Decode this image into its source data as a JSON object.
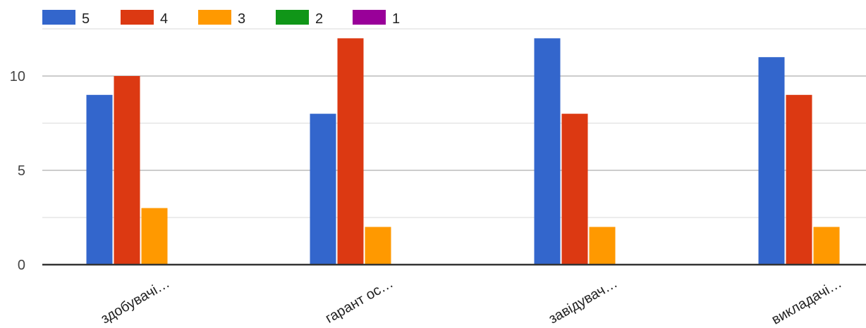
{
  "chart_data": {
    "type": "bar",
    "categories": [
      "здобувачі…",
      "гарант ос…",
      "завідувач…",
      "викладачі…"
    ],
    "series": [
      {
        "name": "5",
        "color": "#3366cc",
        "values": [
          9,
          8,
          12,
          11
        ]
      },
      {
        "name": "4",
        "color": "#dc3912",
        "values": [
          10,
          12,
          8,
          9
        ]
      },
      {
        "name": "3",
        "color": "#ff9900",
        "values": [
          3,
          2,
          2,
          2
        ]
      },
      {
        "name": "2",
        "color": "#109618",
        "values": [
          0,
          0,
          0,
          0
        ]
      },
      {
        "name": "1",
        "color": "#990099",
        "values": [
          0,
          0,
          0,
          0
        ]
      }
    ],
    "yticks": [
      "0",
      "5",
      "10"
    ],
    "ylim": [
      0,
      12.5
    ],
    "grid": true,
    "legend_position": "top-left",
    "title": "",
    "xlabel": "",
    "ylabel": ""
  }
}
